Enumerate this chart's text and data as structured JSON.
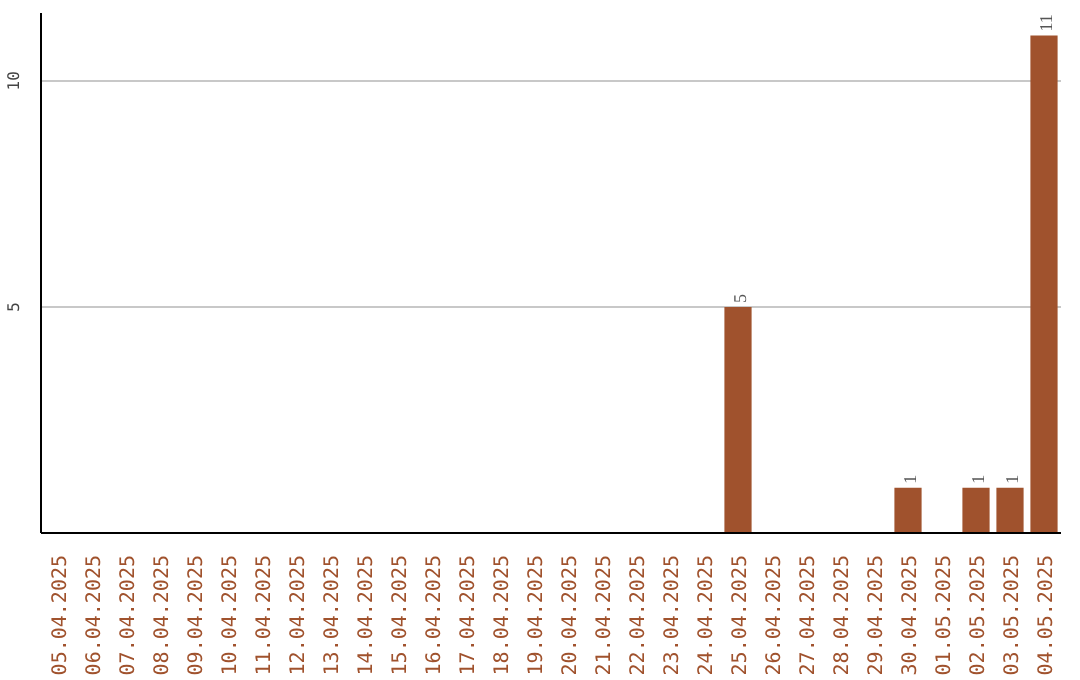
{
  "chart_data": {
    "type": "bar",
    "categories": [
      "05.04.2025",
      "06.04.2025",
      "07.04.2025",
      "08.04.2025",
      "09.04.2025",
      "10.04.2025",
      "11.04.2025",
      "12.04.2025",
      "13.04.2025",
      "14.04.2025",
      "15.04.2025",
      "16.04.2025",
      "17.04.2025",
      "18.04.2025",
      "19.04.2025",
      "20.04.2025",
      "21.04.2025",
      "22.04.2025",
      "23.04.2025",
      "24.04.2025",
      "25.04.2025",
      "26.04.2025",
      "27.04.2025",
      "28.04.2025",
      "29.04.2025",
      "30.04.2025",
      "01.05.2025",
      "02.05.2025",
      "03.05.2025",
      "04.05.2025"
    ],
    "values": [
      0,
      0,
      0,
      0,
      0,
      0,
      0,
      0,
      0,
      0,
      0,
      0,
      0,
      0,
      0,
      0,
      0,
      0,
      0,
      0,
      5,
      0,
      0,
      0,
      0,
      1,
      0,
      1,
      1,
      11
    ],
    "value_labels": [
      null,
      null,
      null,
      null,
      null,
      null,
      null,
      null,
      null,
      null,
      null,
      null,
      null,
      null,
      null,
      null,
      null,
      null,
      null,
      null,
      "5",
      null,
      null,
      null,
      null,
      "1",
      null,
      "1",
      "1",
      "11"
    ],
    "color": "#a0522d",
    "ylim": [
      0,
      11.5
    ],
    "yticks": [
      5,
      10
    ],
    "grid": "y"
  }
}
